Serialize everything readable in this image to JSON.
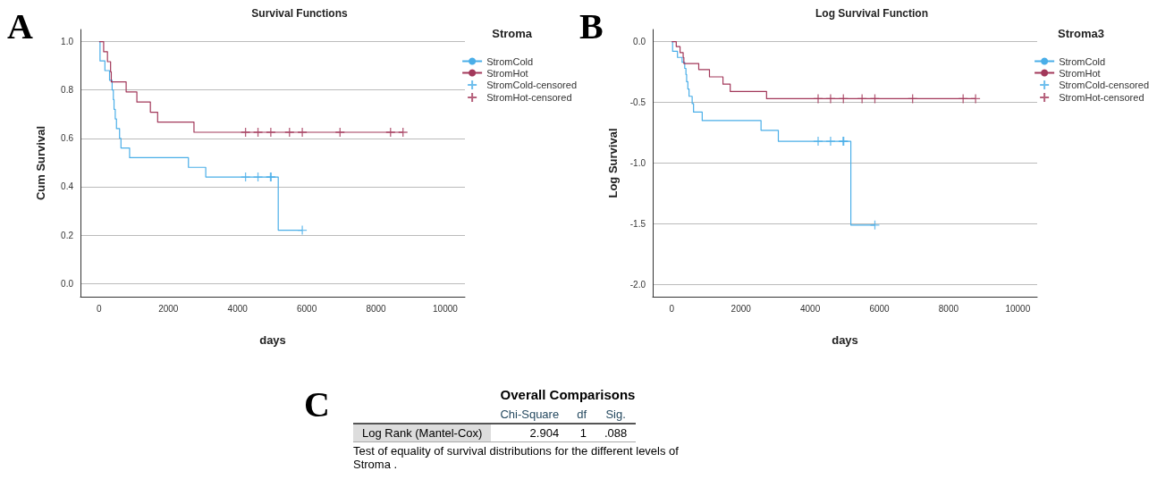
{
  "chart_data": [
    {
      "type": "step",
      "title": "Survival Functions",
      "xlabel": "days",
      "ylabel": "Cum Survival",
      "legend_title": "Stroma",
      "annotations": [
        "A"
      ],
      "xlim": [
        -540,
        10570
      ],
      "xticks": [
        0,
        2000,
        4000,
        6000,
        8000,
        10000
      ],
      "ylim": [
        -0.055,
        1.05
      ],
      "yticks": [
        {
          "value": 0,
          "label": "0.0"
        },
        0.2,
        0.4,
        0.6,
        0.8,
        {
          "value": 1,
          "label": "1.0"
        }
      ],
      "grid": "y",
      "legend": "right",
      "line_style": "solid",
      "series": [
        {
          "name": "StromCold",
          "type": "step",
          "color": "#4aaee8",
          "x": [
            0,
            25,
            166,
            300,
            375,
            410,
            430,
            465,
            500,
            590,
            630,
            880,
            2580,
            3080,
            5175,
            5870
          ],
          "values": [
            1.0,
            0.92,
            0.88,
            0.84,
            0.8,
            0.76,
            0.72,
            0.68,
            0.64,
            0.6,
            0.56,
            0.52,
            0.48,
            0.44,
            0.22,
            0.22
          ]
        },
        {
          "name": "StromHot",
          "type": "step",
          "color": "#a2385a",
          "x": [
            0,
            130,
            240,
            330,
            350,
            780,
            1090,
            1480,
            1690,
            2740,
            8780
          ],
          "values": [
            1.0,
            0.958,
            0.917,
            0.875,
            0.833,
            0.792,
            0.75,
            0.708,
            0.667,
            0.625,
            0.625
          ]
        },
        {
          "name": "StromCold-censored",
          "type": "scatter",
          "marker": "cross",
          "color": "#4aaee8",
          "x": [
            4230,
            4590,
            4950,
            4970,
            5870
          ],
          "values": [
            0.44,
            0.44,
            0.44,
            0.44,
            0.22
          ]
        },
        {
          "name": "StromHot-censored",
          "type": "scatter",
          "marker": "cross",
          "color": "#a2385a",
          "x": [
            4230,
            4590,
            4960,
            5500,
            5870,
            6960,
            8420,
            8780
          ],
          "values": [
            0.625,
            0.625,
            0.625,
            0.625,
            0.625,
            0.625,
            0.625,
            0.625
          ]
        }
      ]
    },
    {
      "type": "step",
      "title": "Log Survival Function",
      "xlabel": "days",
      "ylabel": "Log Survival",
      "legend_title": "Stroma3",
      "annotations": [
        "B"
      ],
      "xlim": [
        -550,
        10560
      ],
      "xticks": [
        0,
        2000,
        4000,
        6000,
        8000,
        10000
      ],
      "ylim": [
        -2.1,
        0.1
      ],
      "yticks": [
        {
          "value": -2,
          "label": "-2.0"
        },
        -1.5,
        {
          "value": -1,
          "label": "-1.0"
        },
        -0.5,
        {
          "value": 0,
          "label": "0.0"
        }
      ],
      "grid": "y",
      "legend": "right",
      "line_style": "solid",
      "series": [
        {
          "name": "StromCold",
          "type": "step",
          "color": "#4aaee8",
          "x": [
            0,
            25,
            166,
            300,
            375,
            410,
            430,
            465,
            500,
            590,
            630,
            880,
            2580,
            3080,
            5175,
            5870
          ],
          "values": [
            0,
            -0.08,
            -0.13,
            -0.17,
            -0.22,
            -0.27,
            -0.33,
            -0.39,
            -0.45,
            -0.51,
            -0.58,
            -0.65,
            -0.73,
            -0.82,
            -1.51,
            -1.51
          ]
        },
        {
          "name": "StromHot",
          "type": "step",
          "color": "#a2385a",
          "x": [
            0,
            130,
            240,
            330,
            350,
            780,
            1090,
            1480,
            1690,
            2740,
            8780
          ],
          "values": [
            0,
            -0.04,
            -0.09,
            -0.13,
            -0.18,
            -0.23,
            -0.29,
            -0.35,
            -0.41,
            -0.47,
            -0.47
          ]
        },
        {
          "name": "StromCold-censored",
          "type": "scatter",
          "marker": "cross",
          "color": "#4aaee8",
          "x": [
            4230,
            4590,
            4950,
            4970,
            5870
          ],
          "values": [
            -0.82,
            -0.82,
            -0.82,
            -0.82,
            -1.51
          ]
        },
        {
          "name": "StromHot-censored",
          "type": "scatter",
          "marker": "cross",
          "color": "#a2385a",
          "x": [
            4230,
            4590,
            4960,
            5500,
            5870,
            6960,
            8420,
            8780
          ],
          "values": [
            -0.47,
            -0.47,
            -0.47,
            -0.47,
            -0.47,
            -0.47,
            -0.47,
            -0.47
          ]
        }
      ]
    },
    {
      "type": "other",
      "title": "Overall Comparisons",
      "annotations": [
        "C",
        "Chi-Square",
        "df",
        "Sig.",
        "Log Rank (Mantel-Cox)",
        "2.904",
        "1",
        ".088",
        "Test of equality of survival distributions for the different levels of Stroma ."
      ]
    }
  ]
}
